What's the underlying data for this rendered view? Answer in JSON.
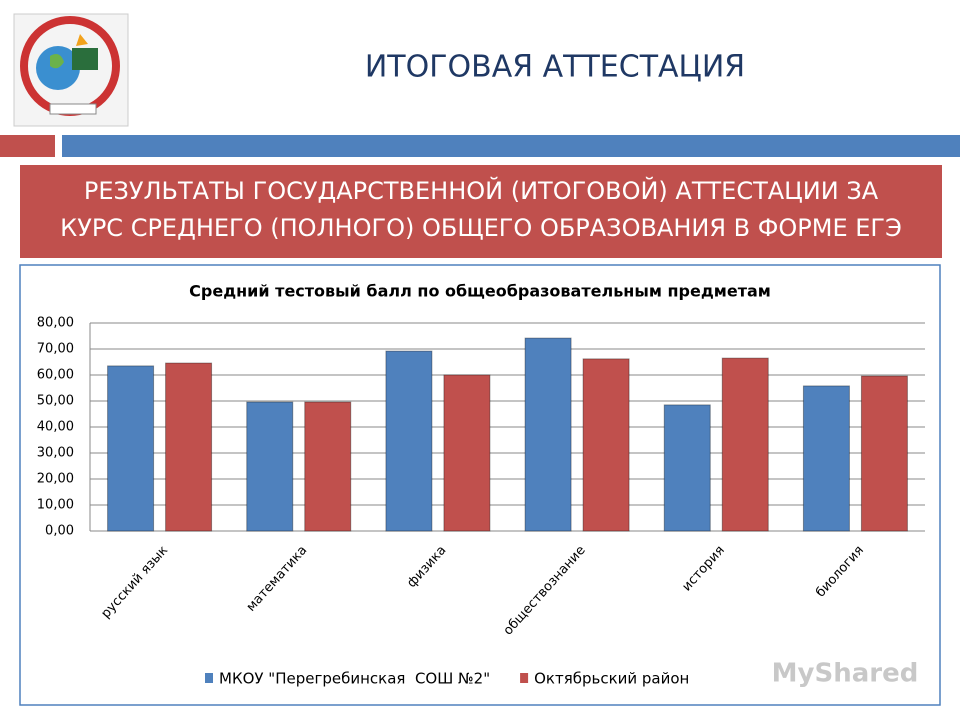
{
  "header": {
    "title": "ИТОГОВАЯ АТТЕСТАЦИЯ"
  },
  "banner": {
    "lines": [
      "РЕЗУЛЬТАТЫ ГОСУДАРСТВЕННОЙ (ИТОГОВОЙ) АТТЕСТАЦИИ ЗА",
      "КУРС СРЕДНЕГО (ПОЛНОГО) ОБЩЕГО ОБРАЗОВАНИЯ В ФОРМЕ ЕГЭ"
    ]
  },
  "chart_data": {
    "type": "bar",
    "title": "Средний тестовый балл по общеобразовательным предметам",
    "categories": [
      "русский язык",
      "математика",
      "физика",
      "обществознание",
      "история",
      "биология"
    ],
    "series": [
      {
        "name": "МКОУ \"Перегребинская  СОШ №2\"",
        "color": "#4f81bd",
        "values": [
          63.5,
          49.6,
          69.2,
          74.2,
          48.5,
          55.8
        ]
      },
      {
        "name": "Октябрьский район",
        "color": "#c0504d",
        "values": [
          64.6,
          49.6,
          60.0,
          66.2,
          66.5,
          59.6
        ]
      }
    ],
    "ylim": [
      0,
      80
    ],
    "yticks": [
      {
        "value": 0,
        "label": "0,00"
      },
      {
        "value": 10,
        "label": "10,00"
      },
      {
        "value": 20,
        "label": "20,00"
      },
      {
        "value": 30,
        "label": "30,00"
      },
      {
        "value": 40,
        "label": "40,00"
      },
      {
        "value": 50,
        "label": "50,00"
      },
      {
        "value": 60,
        "label": "60,00"
      },
      {
        "value": 70,
        "label": "70,00"
      },
      {
        "value": 80,
        "label": "80,00"
      }
    ],
    "grid": true,
    "legend": "bottom"
  },
  "watermark": "MyShared"
}
